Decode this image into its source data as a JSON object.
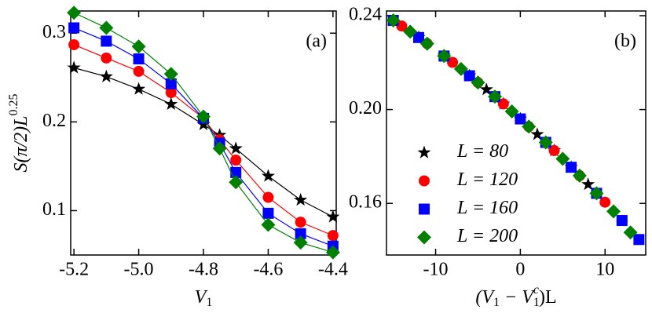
{
  "chart_data": [
    {
      "type": "line",
      "annotation": "(a)",
      "xlabel": {
        "text": "V",
        "sub": "1"
      },
      "ylabel": {
        "text": "S(π/2)L",
        "sup": "0.25"
      },
      "x": [
        -5.2,
        -5.1,
        -5.0,
        -4.9,
        -4.8,
        -4.75,
        -4.7,
        -4.6,
        -4.5,
        -4.4
      ],
      "xlim": [
        -5.21,
        -4.39
      ],
      "xticks": [
        -5.2,
        {
          "value": -5.0,
          "label": "-5.0"
        },
        -4.8,
        -4.6,
        -4.4
      ],
      "ylim": [
        0.05,
        0.325
      ],
      "yticks": [
        0.1,
        0.2,
        0.3
      ],
      "series": [
        {
          "name": "L = 80",
          "color": "#000000",
          "marker": "star",
          "values": [
            0.261,
            0.251,
            0.237,
            0.22,
            0.197,
            0.185,
            0.17,
            0.139,
            0.112,
            0.093
          ]
        },
        {
          "name": "L = 120",
          "color": "#ff0000",
          "marker": "circle",
          "values": [
            0.287,
            0.272,
            0.257,
            0.233,
            0.204,
            0.18,
            0.157,
            0.115,
            0.087,
            0.072
          ]
        },
        {
          "name": "L = 160",
          "color": "#0000ff",
          "marker": "square",
          "values": [
            0.306,
            0.291,
            0.271,
            0.243,
            0.204,
            0.176,
            0.143,
            0.097,
            0.074,
            0.06
          ]
        },
        {
          "name": "L = 200",
          "color": "#008000",
          "marker": "diamond",
          "values": [
            0.323,
            0.306,
            0.285,
            0.254,
            0.206,
            0.17,
            0.132,
            0.084,
            0.064,
            0.053
          ]
        }
      ]
    },
    {
      "type": "scatter",
      "annotation": "(b)",
      "legend": "left",
      "xlabel": {
        "text": "(V",
        "sub": "1",
        "mid": " − V",
        "sub2": "1",
        "sup2": "c",
        "tail": ")L"
      },
      "xlim": [
        -15.8,
        14.8
      ],
      "xticks": [
        -10,
        0,
        10
      ],
      "ylim": [
        0.138,
        0.242
      ],
      "yticks": [
        0.24,
        {
          "value": 0.2,
          "label": "0.20"
        },
        0.16
      ],
      "series": [
        {
          "name": "L = 80",
          "color": "#000000",
          "marker": "star",
          "x": [
            -12,
            -9,
            -6,
            -4,
            -2,
            0,
            2,
            4,
            6,
            8
          ],
          "values": [
            0.2307,
            0.2228,
            0.2144,
            0.2085,
            0.2024,
            0.196,
            0.1894,
            0.1825,
            0.1754,
            0.1681
          ]
        },
        {
          "name": "L = 120",
          "color": "#ff0000",
          "marker": "circle",
          "x": [
            -14,
            -11,
            -8,
            -5,
            -2,
            1,
            4,
            7,
            10,
            12
          ],
          "values": [
            0.2356,
            0.2281,
            0.2201,
            0.2115,
            0.2024,
            0.1927,
            0.1825,
            0.1718,
            0.1605,
            0.1527
          ]
        },
        {
          "name": "L = 160",
          "color": "#0000ff",
          "marker": "square",
          "x": [
            -15,
            -12,
            -9,
            -6,
            -3,
            0,
            3,
            6,
            9,
            12,
            14
          ],
          "values": [
            0.238,
            0.2307,
            0.2228,
            0.2144,
            0.2055,
            0.196,
            0.186,
            0.1754,
            0.1643,
            0.1527,
            0.1446
          ]
        },
        {
          "name": "L = 200",
          "color": "#008000",
          "marker": "diamond",
          "x": [
            -15,
            -13,
            -11,
            -9,
            -7,
            -5,
            -3,
            -1,
            1,
            3,
            5,
            7,
            9,
            11,
            13
          ],
          "values": [
            0.238,
            0.2332,
            0.2281,
            0.2228,
            0.2173,
            0.2115,
            0.2055,
            0.1992,
            0.1927,
            0.186,
            0.179,
            0.1718,
            0.1643,
            0.1566,
            0.1476
          ]
        }
      ]
    }
  ]
}
